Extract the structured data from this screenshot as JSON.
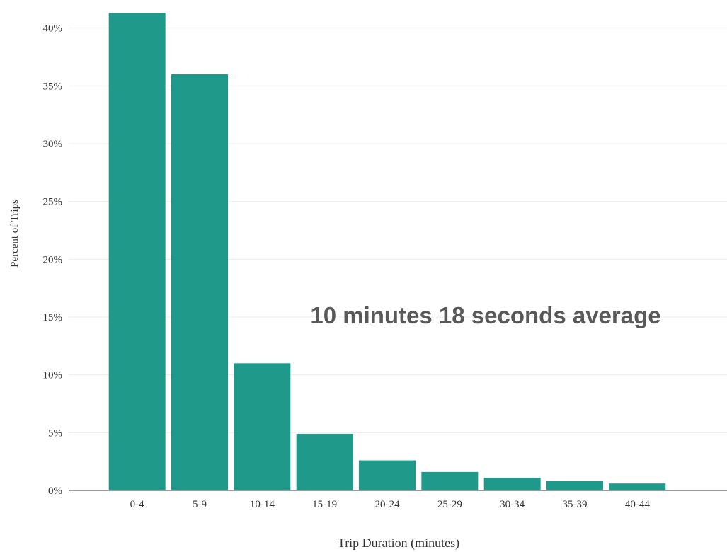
{
  "chart_data": {
    "type": "bar",
    "categories": [
      "0-4",
      "5-9",
      "10-14",
      "15-19",
      "20-24",
      "25-29",
      "30-34",
      "35-39",
      "40-44"
    ],
    "values": [
      41.3,
      36.0,
      11.0,
      4.9,
      2.6,
      1.6,
      1.1,
      0.8,
      0.6
    ],
    "xlabel": "Trip Duration (minutes)",
    "ylabel": "Percent of Trips",
    "ylim": [
      0,
      42
    ],
    "yticks": [
      0,
      5,
      10,
      15,
      20,
      25,
      30,
      35,
      40
    ],
    "ytick_labels": [
      "0%",
      "5%",
      "10%",
      "15%",
      "20%",
      "25%",
      "30%",
      "35%",
      "40%"
    ],
    "annotation": "10 minutes 18 seconds average",
    "bar_color": "#1f9a8a",
    "grid": true,
    "legend": "none"
  }
}
